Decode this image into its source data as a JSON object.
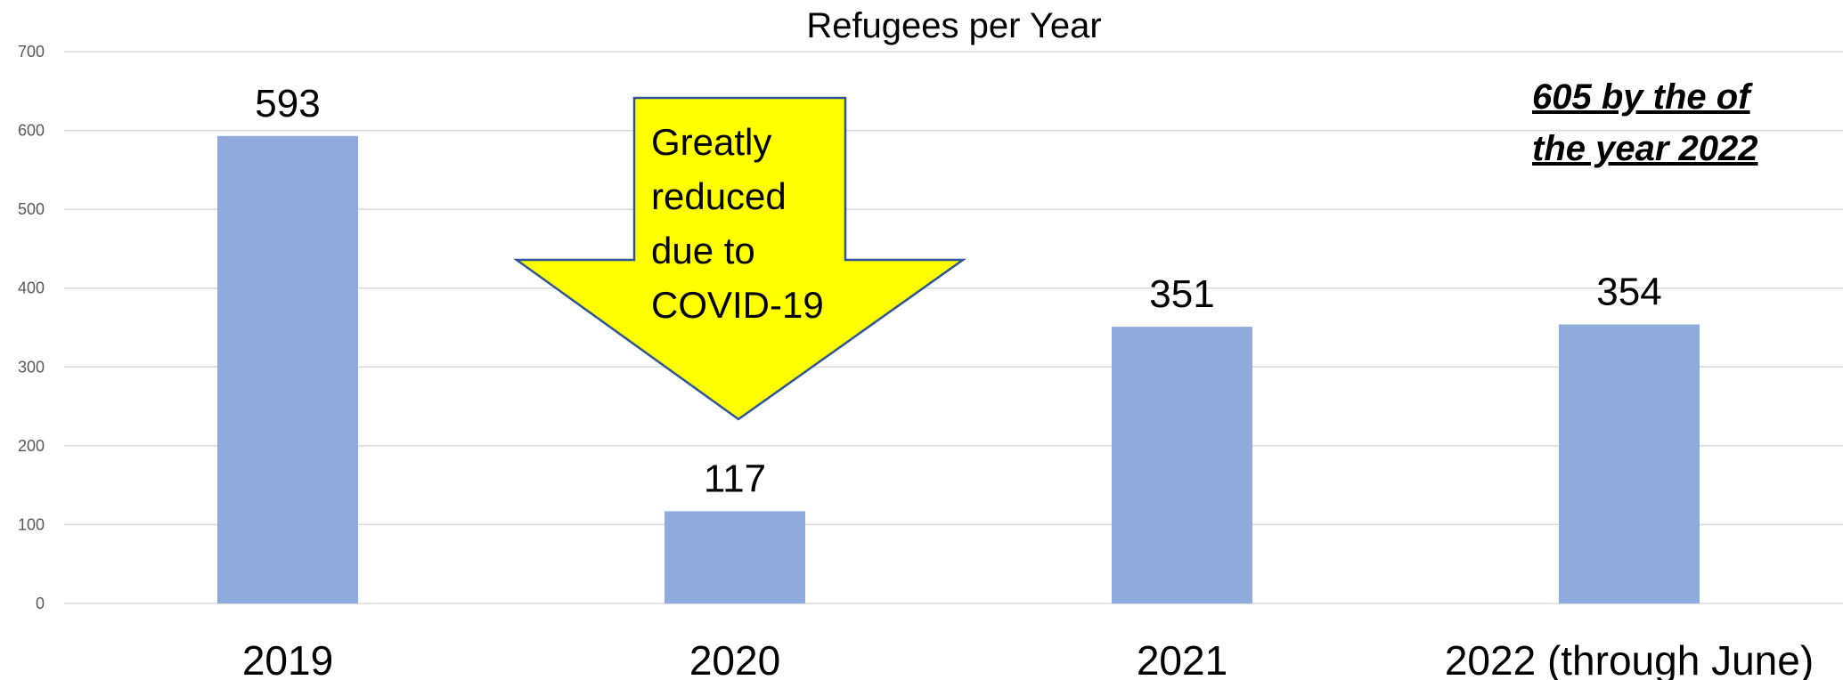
{
  "chart_data": {
    "type": "bar",
    "title": "Refugees per Year",
    "categories": [
      "2019",
      "2020",
      "2021",
      "2022 (through June)"
    ],
    "series": [
      {
        "values": [
          593,
          117,
          351,
          354
        ]
      }
    ],
    "data_labels": [
      "593",
      "117",
      "351",
      "354"
    ],
    "ylim": [
      0,
      700
    ],
    "yticks": [
      0,
      100,
      200,
      300,
      400,
      500,
      600,
      700
    ],
    "grid": true,
    "legend": "none",
    "bar_color": "#8faadc",
    "annotations": {
      "callout": {
        "lines": [
          "Greatly",
          "reduced",
          "due to",
          "COVID-19"
        ],
        "fill": "#ffff00",
        "stroke": "#2f5597",
        "points_to": "2020"
      },
      "note": {
        "lines": [
          "605 by the of",
          "the year 2022"
        ]
      }
    }
  }
}
